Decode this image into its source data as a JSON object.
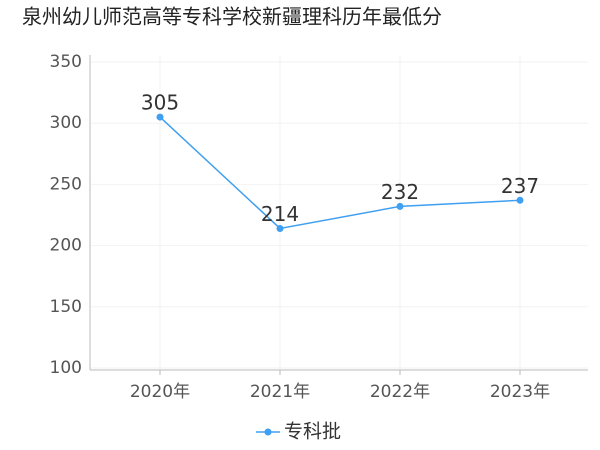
{
  "chart_data": {
    "type": "line",
    "title": "泉州幼儿师范高等专科学校新疆理科历年最低分",
    "categories": [
      "2020年",
      "2021年",
      "2022年",
      "2023年"
    ],
    "series": [
      {
        "name": "专科批",
        "color": "#3f9ff0",
        "values": [
          305,
          214,
          232,
          237
        ]
      }
    ],
    "ylim": [
      100,
      350
    ],
    "yticks": [
      100,
      150,
      200,
      250,
      300,
      350
    ],
    "grid": true
  }
}
